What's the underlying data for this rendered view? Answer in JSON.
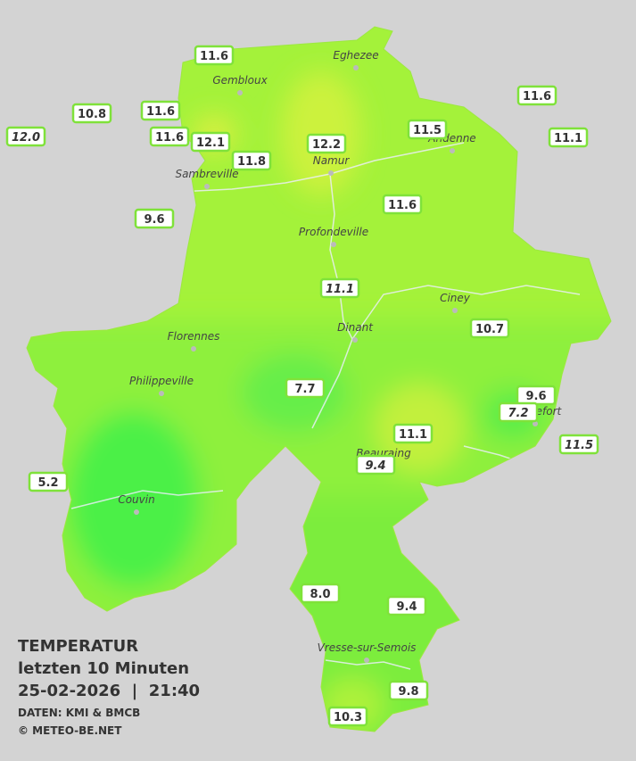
{
  "map": {
    "stations": [
      {
        "label": "11.6"
      },
      {
        "label": "10.8"
      },
      {
        "label": "11.6"
      },
      {
        "label": "12.0"
      },
      {
        "label": "11.6"
      },
      {
        "label": "12.1"
      },
      {
        "label": "11.8"
      },
      {
        "label": "12.2"
      },
      {
        "label": "11.5"
      },
      {
        "label": "11.6"
      },
      {
        "label": "11.1"
      },
      {
        "label": "9.6"
      },
      {
        "label": "11.6"
      },
      {
        "label": "11.1"
      },
      {
        "label": "10.7"
      },
      {
        "label": "7.7"
      },
      {
        "label": "9.6"
      },
      {
        "label": "7.2"
      },
      {
        "label": "11.1"
      },
      {
        "label": "11.5"
      },
      {
        "label": "9.4"
      },
      {
        "label": "5.2"
      },
      {
        "label": "8.0"
      },
      {
        "label": "9.4"
      },
      {
        "label": "9.8"
      },
      {
        "label": "10.3"
      }
    ],
    "cities": [
      "Eghezee",
      "Gembloux",
      "Andenne",
      "Namur",
      "Sambreville",
      "Profondeville",
      "Ciney",
      "Dinant",
      "Florennes",
      "Philippeville",
      "Beauraing",
      "Rochefort",
      "Couvin",
      "Vresse-sur-Semois"
    ],
    "legend": {
      "title": "TEMPERATUR",
      "period": "letzten 10 Minuten",
      "datetime": "25-02-2026  |  21:40",
      "source": "DATEN: KMI & BMCB",
      "copyright": "© METEO-BE.NET"
    }
  }
}
